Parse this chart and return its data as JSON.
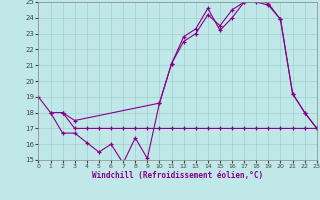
{
  "xlabel": "Windchill (Refroidissement éolien,°C)",
  "xlim": [
    0,
    23
  ],
  "ylim": [
    15,
    25
  ],
  "xticks": [
    0,
    1,
    2,
    3,
    4,
    5,
    6,
    7,
    8,
    9,
    10,
    11,
    12,
    13,
    14,
    15,
    16,
    17,
    18,
    19,
    20,
    21,
    22,
    23
  ],
  "yticks": [
    15,
    16,
    17,
    18,
    19,
    20,
    21,
    22,
    23,
    24,
    25
  ],
  "bg_color": "#c0e8e8",
  "line_color": "#880088",
  "grid_color": "#98c8c8",
  "curve1_x": [
    0,
    1,
    2,
    3,
    4,
    5,
    6,
    7,
    8,
    9,
    10,
    11,
    12,
    13,
    14,
    15,
    16,
    17,
    18,
    19,
    20,
    21,
    22,
    23
  ],
  "curve1_y": [
    19,
    18,
    16.7,
    16.7,
    16.1,
    15.5,
    16.0,
    14.8,
    16.4,
    15.1,
    18.6,
    21.1,
    22.8,
    23.3,
    24.6,
    23.2,
    24.0,
    25.0,
    25.2,
    24.9,
    23.9,
    19.2,
    18.0,
    17.0
  ],
  "curve2_x": [
    1,
    2,
    3,
    4,
    5,
    6,
    7,
    8,
    9,
    10,
    11,
    12,
    13,
    14,
    15,
    16,
    17,
    18,
    19,
    20,
    21,
    22,
    23
  ],
  "curve2_y": [
    18,
    18,
    17.0,
    17.0,
    17.0,
    17.0,
    17.0,
    17.0,
    17.0,
    17.0,
    17.0,
    17.0,
    17.0,
    17.0,
    17.0,
    17.0,
    17.0,
    17.0,
    17.0,
    17.0,
    17.0,
    17.0,
    17.0
  ],
  "curve3_x": [
    2,
    3,
    10,
    11,
    12,
    13,
    14,
    15,
    16,
    17,
    18,
    19,
    20,
    21,
    22,
    23
  ],
  "curve3_y": [
    18,
    17.5,
    18.6,
    21.1,
    22.5,
    23.0,
    24.2,
    23.5,
    24.5,
    25.0,
    25.0,
    24.8,
    23.9,
    19.2,
    18.0,
    17.0
  ]
}
